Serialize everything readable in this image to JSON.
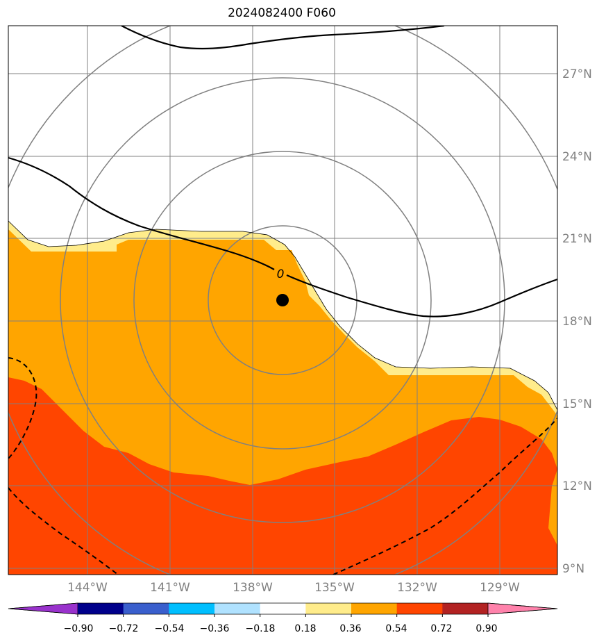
{
  "title": "2024082400 F060",
  "lat_labels": [
    "27°N",
    "24°N",
    "21°N",
    "18°N",
    "15°N",
    "12°N",
    "9°N"
  ],
  "lon_labels": [
    "144°W",
    "141°W",
    "138°W",
    "135°W",
    "132°W",
    "129°W"
  ],
  "contour_label": "0",
  "colorbar": {
    "ticks": [
      "−0.90",
      "−0.72",
      "−0.54",
      "−0.36",
      "−0.18",
      "0.18",
      "0.36",
      "0.54",
      "0.72",
      "0.90"
    ],
    "colors": [
      "#9932cc",
      "#00008b",
      "#3a5fcd",
      "#00bfff",
      "#b0e2ff",
      "#ffffff",
      "#ffec8b",
      "#ffa500",
      "#ff4500",
      "#b22222",
      "#ff82ab"
    ]
  },
  "colors": {
    "orange": "#ffa500",
    "red_orange": "#ff4500",
    "light_yellow": "#ffec8b",
    "grid": "#808080"
  }
}
